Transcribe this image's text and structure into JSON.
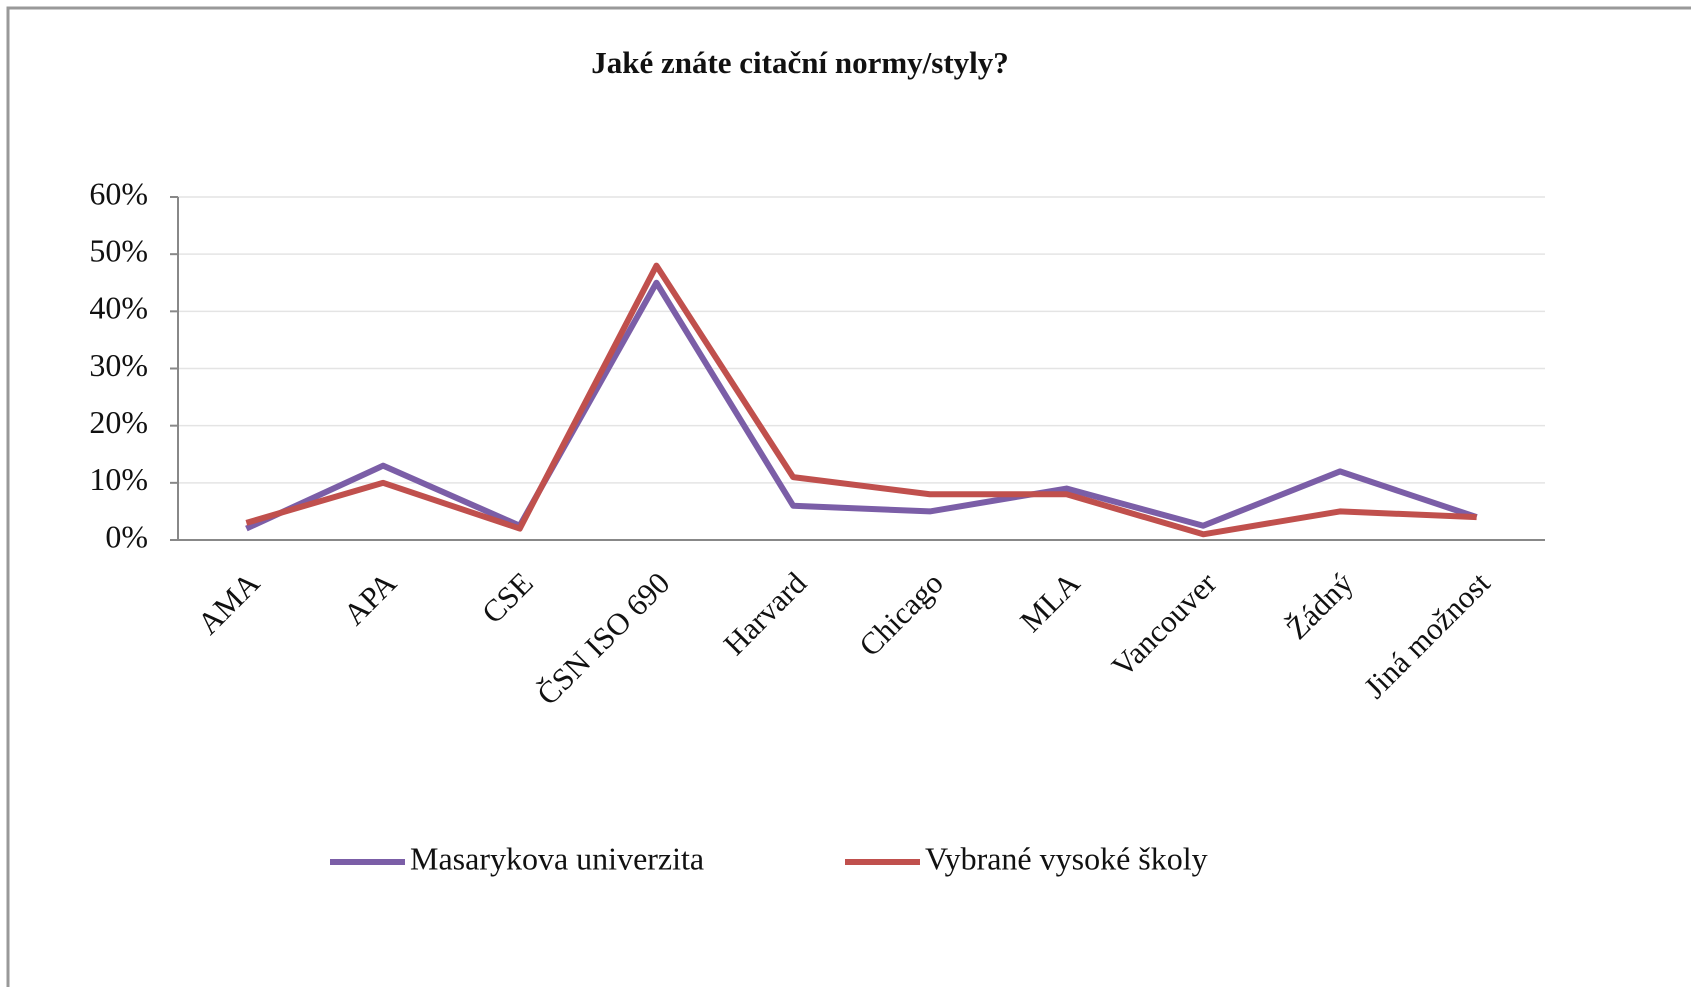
{
  "chart_data": {
    "type": "line",
    "title": "Jaké znáte citační normy/styly?",
    "categories": [
      "AMA",
      "APA",
      "CSE",
      "ČSN ISO 690",
      "Harvard",
      "Chicago",
      "MLA",
      "Vancouver",
      "Žádný",
      "Jiná možnost"
    ],
    "series": [
      {
        "name": "Masarykova univerzita",
        "color": "#7b5ea7",
        "values": [
          2,
          13,
          2.5,
          45,
          6,
          5,
          9,
          2.5,
          12,
          4
        ]
      },
      {
        "name": "Vybrané vysoké školy",
        "color": "#c0504d",
        "values": [
          3,
          10,
          2,
          48,
          11,
          8,
          8,
          1,
          5,
          4
        ]
      }
    ],
    "ylim": [
      0,
      60
    ],
    "yticks": [
      {
        "value": 0,
        "label": "0%"
      },
      {
        "value": 10,
        "label": "10%"
      },
      {
        "value": 20,
        "label": "20%"
      },
      {
        "value": 30,
        "label": "30%"
      },
      {
        "value": 40,
        "label": "40%"
      },
      {
        "value": 50,
        "label": "50%"
      },
      {
        "value": 60,
        "label": "60%"
      }
    ],
    "grid": true,
    "legend": "bottom"
  }
}
